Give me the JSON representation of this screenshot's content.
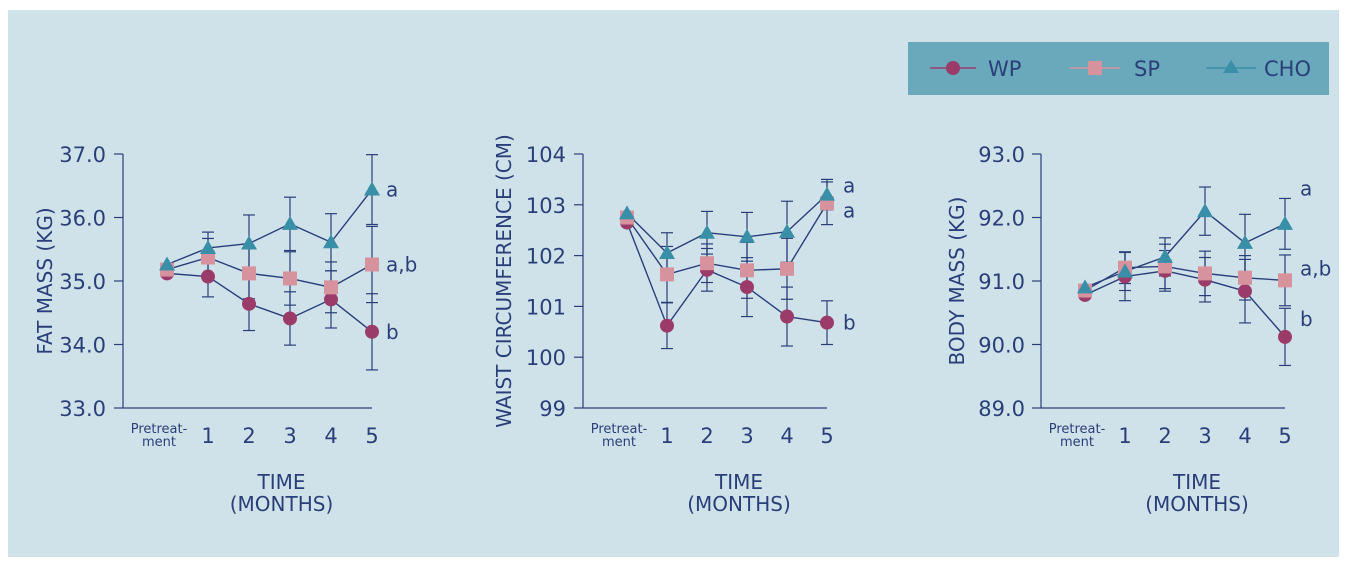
{
  "colors": {
    "background": "#d0e2e9",
    "legend_bg": "#6aa9bb",
    "axis": "#2a3f7a",
    "series_line": "#2a3f7a",
    "WP": "#9b3b6a",
    "SP": "#d6939e",
    "CHO": "#3a8fa8"
  },
  "legend": [
    {
      "name": "WP",
      "marker": "circle"
    },
    {
      "name": "SP",
      "marker": "square"
    },
    {
      "name": "CHO",
      "marker": "triangle"
    }
  ],
  "chart_data": [
    {
      "type": "line",
      "ylabel": "FAT MASS (KG)",
      "xlabel_lines": [
        "TIME",
        "(MONTHS)"
      ],
      "categories": [
        "Pretreat-ment",
        "1",
        "2",
        "3",
        "4",
        "5"
      ],
      "yticks": [
        "33.0",
        "34.0",
        "35.0",
        "36.0",
        "37.0"
      ],
      "ylim": [
        33.0,
        37.0
      ],
      "series": [
        {
          "name": "WP",
          "values": [
            35.12,
            35.07,
            34.64,
            34.41,
            34.71,
            34.2
          ],
          "err": [
            0.0,
            0.32,
            0.42,
            0.42,
            0.45,
            0.6
          ],
          "group": "b"
        },
        {
          "name": "SP",
          "values": [
            35.18,
            35.37,
            35.12,
            35.04,
            34.9,
            35.26
          ],
          "err": [
            0.0,
            0.3,
            0.4,
            0.42,
            0.4,
            0.6
          ],
          "group": "a,b"
        },
        {
          "name": "CHO",
          "values": [
            35.26,
            35.52,
            35.59,
            35.9,
            35.61,
            36.44
          ],
          "err": [
            0.0,
            0.25,
            0.45,
            0.42,
            0.45,
            0.55
          ],
          "group": "a"
        }
      ]
    },
    {
      "type": "line",
      "ylabel": "WAIST CIRCUMFERENCE (CM)",
      "xlabel_lines": [
        "TIME",
        "(MONTHS)"
      ],
      "categories": [
        "Pretreat-ment",
        "1",
        "2",
        "3",
        "4",
        "5"
      ],
      "yticks": [
        "99",
        "100",
        "101",
        "102",
        "103",
        "104"
      ],
      "ylim": [
        99,
        104
      ],
      "series": [
        {
          "name": "WP",
          "values": [
            102.65,
            100.62,
            101.72,
            101.38,
            100.8,
            100.68
          ],
          "err": [
            0.0,
            0.45,
            0.42,
            0.58,
            0.58,
            0.43
          ],
          "group": "b"
        },
        {
          "name": "SP",
          "values": [
            102.75,
            101.63,
            101.85,
            101.71,
            101.74,
            103.03
          ],
          "err": [
            0.0,
            0.55,
            0.38,
            0.55,
            0.6,
            0.42
          ],
          "group": "a"
        },
        {
          "name": "CHO",
          "values": [
            102.83,
            102.05,
            102.45,
            102.37,
            102.47,
            103.2
          ],
          "err": [
            0.0,
            0.4,
            0.42,
            0.48,
            0.6,
            0.3
          ],
          "group": "a"
        }
      ]
    },
    {
      "type": "line",
      "ylabel": "BODY MASS (KG)",
      "xlabel_lines": [
        "TIME",
        "(MONTHS)"
      ],
      "categories": [
        "Pretreat-ment",
        "1",
        "2",
        "3",
        "4",
        "5"
      ],
      "yticks": [
        "89.0",
        "90.0",
        "91.0",
        "92.0",
        "93.0"
      ],
      "ylim": [
        89.0,
        93.0
      ],
      "series": [
        {
          "name": "WP",
          "values": [
            90.78,
            91.07,
            91.16,
            91.02,
            90.84,
            90.12
          ],
          "err": [
            0.0,
            0.38,
            0.32,
            0.35,
            0.5,
            0.45
          ],
          "group": "b"
        },
        {
          "name": "SP",
          "values": [
            90.85,
            91.21,
            91.23,
            91.12,
            91.05,
            91.01
          ],
          "err": [
            0.0,
            0.25,
            0.35,
            0.35,
            0.35,
            0.4
          ],
          "group": "a,b"
        },
        {
          "name": "CHO",
          "values": [
            90.9,
            91.15,
            91.38,
            92.1,
            91.6,
            91.9
          ],
          "err": [
            0.0,
            0.3,
            0.3,
            0.38,
            0.45,
            0.4
          ],
          "group": "a"
        }
      ]
    }
  ]
}
